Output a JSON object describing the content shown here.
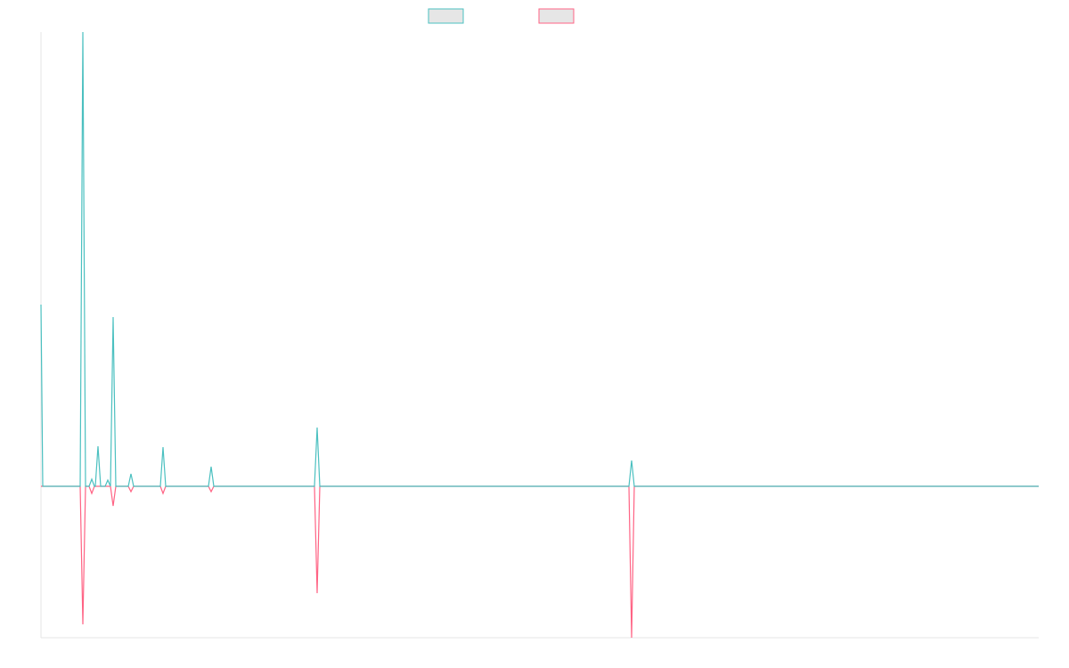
{
  "chart_data": {
    "type": "line",
    "x": [
      0,
      2,
      44,
      47,
      50,
      54,
      57,
      60,
      61,
      64,
      67,
      72,
      75,
      78,
      81,
      84,
      98,
      101,
      104,
      134,
      137,
      140,
      188,
      191,
      194,
      307,
      310,
      313,
      660,
      663,
      666,
      1120
    ],
    "series": [
      {
        "color": "#ff6384",
        "values": [
          0,
          0,
          0,
          -155,
          0,
          0,
          -8,
          0,
          0,
          0,
          0,
          0,
          0,
          0,
          -22,
          0,
          0,
          -6,
          0,
          0,
          -8,
          0,
          0,
          -6,
          0,
          0,
          -120,
          0,
          0,
          -170,
          0,
          0
        ]
      },
      {
        "color": "#4bc0c0",
        "values": [
          204,
          0,
          0,
          510,
          0,
          0,
          8,
          0,
          0,
          45,
          0,
          0,
          7,
          0,
          190,
          0,
          0,
          14,
          0,
          0,
          44,
          0,
          0,
          22,
          0,
          0,
          66,
          0,
          0,
          29,
          0,
          0
        ]
      }
    ],
    "xlim": [
      0,
      1120
    ],
    "ylim": [
      -170,
      510
    ],
    "grid": false
  }
}
